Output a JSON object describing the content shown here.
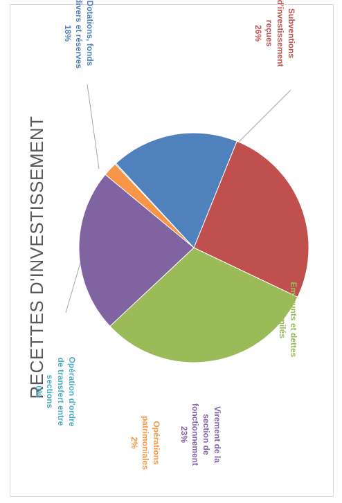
{
  "chart_data": {
    "type": "pie",
    "title": "RECETTES D'INVESTISSEMENT",
    "slices": [
      {
        "key": "subventions",
        "lines": [
          "Subventions",
          "d'investissement",
          "reçues"
        ],
        "pct_label": "26%",
        "value": 26,
        "color": "#c0504d"
      },
      {
        "key": "emprunts",
        "lines": [
          "Emprunts et dettes",
          "assimilés"
        ],
        "pct_label": "31%",
        "value": 31,
        "color": "#9bbb59"
      },
      {
        "key": "virement",
        "lines": [
          "Virement de la",
          "section de",
          "fonctionnement"
        ],
        "pct_label": "23%",
        "value": 23,
        "color": "#8064a2"
      },
      {
        "key": "operations_patrimoniales",
        "lines": [
          "Opérations",
          "patrimoniales"
        ],
        "pct_label": "2%",
        "value": 2,
        "color": "#f79646"
      },
      {
        "key": "operation_ordre",
        "lines": [
          "Opération d'ordre",
          "de transfert entre",
          "sections"
        ],
        "pct_label": "0%",
        "value": 0.15,
        "color": "#4bacc6"
      },
      {
        "key": "dotations",
        "lines": [
          "Dotations, fonds",
          "divers et réserves"
        ],
        "pct_label": "18%",
        "value": 18,
        "color": "#4f81bd"
      }
    ]
  }
}
